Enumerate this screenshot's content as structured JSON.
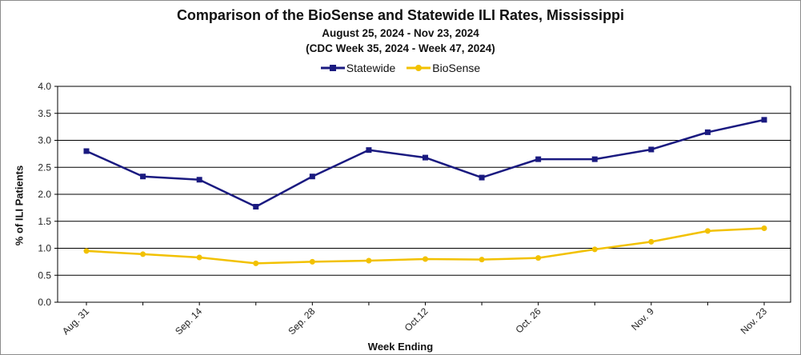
{
  "chart_data": {
    "type": "line",
    "title": "Comparison of the BioSense and Statewide ILI Rates, Mississippi",
    "subtitle_1": "August 25, 2024 - Nov 23, 2024",
    "subtitle_2": "(CDC Week 35, 2024 - Week 47, 2024)",
    "xlabel": "Week Ending",
    "ylabel": "% of ILI Patients",
    "ylim": [
      0,
      4
    ],
    "yticks": [
      "0.0",
      "0.5",
      "1.0",
      "1.5",
      "2.0",
      "2.5",
      "3.0",
      "3.5",
      "4.0"
    ],
    "x": [
      "Aug. 31",
      "Sep. 7",
      "Sep. 14",
      "Sep. 21",
      "Sep. 28",
      "Oct. 5",
      "Oct.12",
      "Oct. 19",
      "Oct. 26",
      "Nov. 2",
      "Nov. 9",
      "Nov. 16",
      "Nov. 23"
    ],
    "xtick_labels_shown": [
      "Aug. 31",
      "",
      "Sep. 14",
      "",
      "Sep. 28",
      "",
      "Oct.12",
      "",
      "Oct. 26",
      "",
      "Nov. 9",
      "",
      "Nov. 23"
    ],
    "grid": true,
    "legend_position": "top-center",
    "series": [
      {
        "name": "Statewide",
        "color": "#1a1a80",
        "marker": "square",
        "values": [
          2.8,
          2.33,
          2.27,
          1.77,
          2.33,
          2.82,
          2.68,
          2.31,
          2.65,
          2.65,
          2.83,
          3.15,
          3.38
        ]
      },
      {
        "name": "BioSense",
        "color": "#f2c100",
        "marker": "circle",
        "values": [
          0.95,
          0.89,
          0.83,
          0.72,
          0.75,
          0.77,
          0.8,
          0.79,
          0.82,
          0.98,
          1.12,
          1.32,
          1.37
        ]
      }
    ]
  }
}
